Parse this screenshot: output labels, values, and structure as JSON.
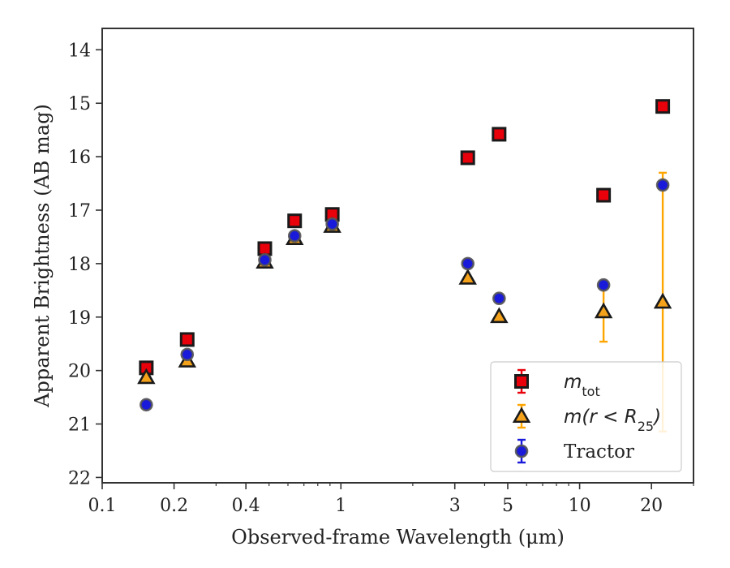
{
  "chart_data": {
    "type": "scatter",
    "xlabel": "Observed-frame Wavelength (μm)",
    "ylabel": "Apparent Brightness (AB mag)",
    "xscale": "log",
    "xlim": [
      0.1,
      30
    ],
    "ylim": [
      22.1,
      13.6
    ],
    "y_inverted": true,
    "x_ticks": [
      0.1,
      0.2,
      0.4,
      1,
      3,
      5,
      10,
      20
    ],
    "x_tick_labels": [
      "0.1",
      "0.2",
      "0.4",
      "1",
      "3",
      "5",
      "10",
      "20"
    ],
    "y_ticks": [
      14,
      15,
      16,
      17,
      18,
      19,
      20,
      21,
      22
    ],
    "y_tick_labels": [
      "14",
      "15",
      "16",
      "17",
      "18",
      "19",
      "20",
      "21",
      "22"
    ],
    "legend_position": "lower-right",
    "series": [
      {
        "name": "m_tot",
        "legend_main": "m",
        "legend_sub": "tot",
        "marker": "square",
        "fill": "#e8000b",
        "errcolor": "#e8000b",
        "points": [
          {
            "x": 0.153,
            "y": 19.95,
            "err": 0.06
          },
          {
            "x": 0.227,
            "y": 19.42,
            "err": 0.04
          },
          {
            "x": 0.48,
            "y": 17.72,
            "err": 0.03
          },
          {
            "x": 0.64,
            "y": 17.2,
            "err": 0.03
          },
          {
            "x": 0.92,
            "y": 17.08,
            "err": 0.03
          },
          {
            "x": 3.4,
            "y": 16.02,
            "err": 0.03
          },
          {
            "x": 4.6,
            "y": 15.58,
            "err": 0.03
          },
          {
            "x": 12.6,
            "y": 16.72,
            "err": 0.03
          },
          {
            "x": 22.3,
            "y": 15.06,
            "err": 0.03
          }
        ]
      },
      {
        "name": "m(r < R25)",
        "legend_main": "m(r < R",
        "legend_sub": "25",
        "legend_tail": ")",
        "marker": "triangle",
        "fill": "#f5a21b",
        "errcolor": "#ffa500",
        "points": [
          {
            "x": 0.153,
            "y": 20.13,
            "err": 0.06
          },
          {
            "x": 0.227,
            "y": 19.82,
            "err": 0.05
          },
          {
            "x": 0.48,
            "y": 17.97,
            "err": 0.03
          },
          {
            "x": 0.64,
            "y": 17.53,
            "err": 0.03
          },
          {
            "x": 0.92,
            "y": 17.3,
            "err": 0.03
          },
          {
            "x": 3.4,
            "y": 18.27,
            "err": 0.05
          },
          {
            "x": 4.6,
            "y": 18.99,
            "err": 0.06
          },
          {
            "x": 12.6,
            "y": 18.9,
            "err": 0.56
          },
          {
            "x": 22.3,
            "y": 18.72,
            "err": 2.42
          }
        ]
      },
      {
        "name": "Tractor",
        "marker": "circle",
        "fill": "#1a1adb",
        "errcolor": "#1a1adb",
        "points": [
          {
            "x": 0.153,
            "y": 20.64,
            "err": 0.07
          },
          {
            "x": 0.227,
            "y": 19.7,
            "err": 0.06
          },
          {
            "x": 0.48,
            "y": 17.93,
            "err": 0.04
          },
          {
            "x": 0.64,
            "y": 17.48,
            "err": 0.04
          },
          {
            "x": 0.92,
            "y": 17.26,
            "err": 0.04
          },
          {
            "x": 3.4,
            "y": 18.0,
            "err": 0.05
          },
          {
            "x": 4.6,
            "y": 18.65,
            "err": 0.06
          },
          {
            "x": 12.6,
            "y": 18.4,
            "err": 0.06
          },
          {
            "x": 22.3,
            "y": 16.53,
            "err": 0.1
          }
        ]
      }
    ]
  }
}
